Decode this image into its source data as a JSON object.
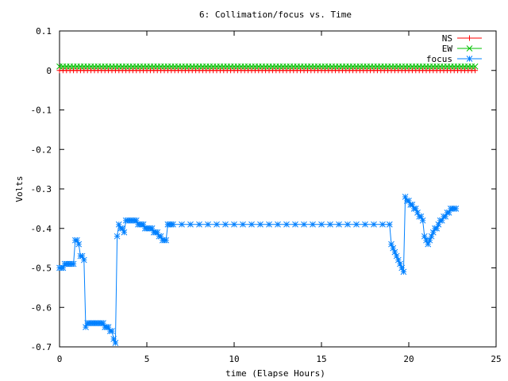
{
  "chart_data": {
    "type": "line",
    "title": "6: Collimation/focus vs. Time",
    "xlabel": "time (Elapse Hours)",
    "ylabel": "Volts",
    "xlim": [
      0,
      25
    ],
    "ylim": [
      -0.7,
      0.1
    ],
    "x_ticks": [
      "0",
      "5",
      "10",
      "15",
      "20",
      "25"
    ],
    "y_ticks": [
      "0.1",
      "0",
      "-0.1",
      "-0.2",
      "-0.3",
      "-0.4",
      "-0.5",
      "-0.6",
      "-0.7"
    ],
    "legend_position": "top-right",
    "grid": false,
    "series": [
      {
        "name": "NS",
        "color": "#ff0000",
        "marker": "plus",
        "x_start": 0,
        "x_end": 23.8,
        "x_step": 0.2,
        "constant_value": 0.0
      },
      {
        "name": "EW",
        "color": "#00c000",
        "marker": "cross",
        "x_start": 0,
        "x_end": 23.8,
        "x_step": 0.2,
        "constant_value": 0.01
      },
      {
        "name": "focus",
        "color": "#0080ff",
        "marker": "star",
        "points": [
          [
            0.0,
            -0.5
          ],
          [
            0.1,
            -0.5
          ],
          [
            0.2,
            -0.5
          ],
          [
            0.3,
            -0.49
          ],
          [
            0.4,
            -0.49
          ],
          [
            0.5,
            -0.49
          ],
          [
            0.6,
            -0.49
          ],
          [
            0.7,
            -0.49
          ],
          [
            0.8,
            -0.49
          ],
          [
            0.9,
            -0.43
          ],
          [
            1.0,
            -0.43
          ],
          [
            1.1,
            -0.44
          ],
          [
            1.2,
            -0.47
          ],
          [
            1.3,
            -0.47
          ],
          [
            1.4,
            -0.48
          ],
          [
            1.5,
            -0.65
          ],
          [
            1.6,
            -0.64
          ],
          [
            1.7,
            -0.64
          ],
          [
            1.8,
            -0.64
          ],
          [
            1.9,
            -0.64
          ],
          [
            2.0,
            -0.64
          ],
          [
            2.1,
            -0.64
          ],
          [
            2.2,
            -0.64
          ],
          [
            2.3,
            -0.64
          ],
          [
            2.4,
            -0.64
          ],
          [
            2.5,
            -0.64
          ],
          [
            2.6,
            -0.65
          ],
          [
            2.7,
            -0.65
          ],
          [
            2.8,
            -0.65
          ],
          [
            2.9,
            -0.66
          ],
          [
            3.0,
            -0.66
          ],
          [
            3.1,
            -0.68
          ],
          [
            3.2,
            -0.69
          ],
          [
            3.3,
            -0.42
          ],
          [
            3.4,
            -0.39
          ],
          [
            3.5,
            -0.4
          ],
          [
            3.6,
            -0.4
          ],
          [
            3.7,
            -0.41
          ],
          [
            3.8,
            -0.38
          ],
          [
            3.9,
            -0.38
          ],
          [
            4.0,
            -0.38
          ],
          [
            4.1,
            -0.38
          ],
          [
            4.2,
            -0.38
          ],
          [
            4.3,
            -0.38
          ],
          [
            4.4,
            -0.38
          ],
          [
            4.5,
            -0.39
          ],
          [
            4.6,
            -0.39
          ],
          [
            4.7,
            -0.39
          ],
          [
            4.8,
            -0.39
          ],
          [
            4.9,
            -0.4
          ],
          [
            5.0,
            -0.4
          ],
          [
            5.1,
            -0.4
          ],
          [
            5.2,
            -0.4
          ],
          [
            5.3,
            -0.4
          ],
          [
            5.4,
            -0.41
          ],
          [
            5.5,
            -0.41
          ],
          [
            5.6,
            -0.41
          ],
          [
            5.7,
            -0.42
          ],
          [
            5.8,
            -0.42
          ],
          [
            5.9,
            -0.43
          ],
          [
            6.0,
            -0.43
          ],
          [
            6.1,
            -0.43
          ],
          [
            6.2,
            -0.39
          ],
          [
            6.3,
            -0.39
          ],
          [
            6.4,
            -0.39
          ],
          [
            6.5,
            -0.39
          ],
          [
            7.0,
            -0.39
          ],
          [
            7.5,
            -0.39
          ],
          [
            8.0,
            -0.39
          ],
          [
            8.5,
            -0.39
          ],
          [
            9.0,
            -0.39
          ],
          [
            9.5,
            -0.39
          ],
          [
            10.0,
            -0.39
          ],
          [
            10.5,
            -0.39
          ],
          [
            11.0,
            -0.39
          ],
          [
            11.5,
            -0.39
          ],
          [
            12.0,
            -0.39
          ],
          [
            12.5,
            -0.39
          ],
          [
            13.0,
            -0.39
          ],
          [
            13.5,
            -0.39
          ],
          [
            14.0,
            -0.39
          ],
          [
            14.5,
            -0.39
          ],
          [
            15.0,
            -0.39
          ],
          [
            15.5,
            -0.39
          ],
          [
            16.0,
            -0.39
          ],
          [
            16.5,
            -0.39
          ],
          [
            17.0,
            -0.39
          ],
          [
            17.5,
            -0.39
          ],
          [
            18.0,
            -0.39
          ],
          [
            18.5,
            -0.39
          ],
          [
            18.9,
            -0.39
          ],
          [
            19.0,
            -0.44
          ],
          [
            19.1,
            -0.45
          ],
          [
            19.2,
            -0.46
          ],
          [
            19.3,
            -0.47
          ],
          [
            19.4,
            -0.48
          ],
          [
            19.5,
            -0.49
          ],
          [
            19.6,
            -0.5
          ],
          [
            19.7,
            -0.51
          ],
          [
            19.8,
            -0.32
          ],
          [
            19.9,
            -0.33
          ],
          [
            20.0,
            -0.33
          ],
          [
            20.1,
            -0.34
          ],
          [
            20.2,
            -0.34
          ],
          [
            20.3,
            -0.35
          ],
          [
            20.4,
            -0.35
          ],
          [
            20.5,
            -0.36
          ],
          [
            20.6,
            -0.37
          ],
          [
            20.7,
            -0.37
          ],
          [
            20.8,
            -0.38
          ],
          [
            20.9,
            -0.42
          ],
          [
            21.0,
            -0.43
          ],
          [
            21.1,
            -0.44
          ],
          [
            21.2,
            -0.43
          ],
          [
            21.3,
            -0.42
          ],
          [
            21.4,
            -0.41
          ],
          [
            21.5,
            -0.4
          ],
          [
            21.6,
            -0.4
          ],
          [
            21.7,
            -0.39
          ],
          [
            21.8,
            -0.38
          ],
          [
            21.9,
            -0.38
          ],
          [
            22.0,
            -0.37
          ],
          [
            22.1,
            -0.37
          ],
          [
            22.2,
            -0.36
          ],
          [
            22.3,
            -0.36
          ],
          [
            22.4,
            -0.35
          ],
          [
            22.5,
            -0.35
          ],
          [
            22.6,
            -0.35
          ],
          [
            22.7,
            -0.35
          ]
        ]
      }
    ]
  }
}
